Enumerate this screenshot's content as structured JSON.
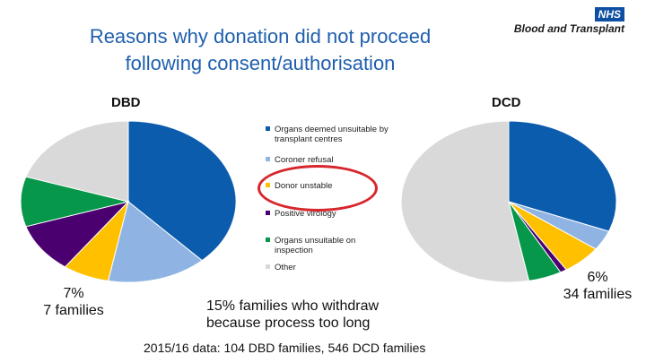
{
  "title": {
    "line1": "Reasons why donation did not proceed",
    "line2": "following consent/authorisation"
  },
  "logo": {
    "badge": "NHS",
    "org": "Blood and Transplant"
  },
  "legend": [
    {
      "label": "Organs deemed unsuitable by transplant centres",
      "color": "#0b5cad"
    },
    {
      "label": "Coroner refusal",
      "color": "#8fb4e3"
    },
    {
      "label": "Donor unstable",
      "color": "#ffc000"
    },
    {
      "label": "Positive virology",
      "color": "#4b0070"
    },
    {
      "label": "Organs unsuitable on inspection",
      "color": "#07974a"
    },
    {
      "label": "Other",
      "color": "#d9d9d9"
    }
  ],
  "chart_data": [
    {
      "type": "pie",
      "title": "DBD",
      "categories": [
        "Organs deemed unsuitable by transplant centres",
        "Coroner refusal",
        "Donor unstable",
        "Positive virology",
        "Organs unsuitable on inspection",
        "Other"
      ],
      "values": [
        38,
        15,
        7,
        10,
        10,
        20
      ],
      "colors": [
        "#0b5cad",
        "#8fb4e3",
        "#ffc000",
        "#4b0070",
        "#07974a",
        "#d9d9d9"
      ]
    },
    {
      "type": "pie",
      "title": "DCD",
      "categories": [
        "Organs deemed unsuitable by transplant centres",
        "Coroner refusal",
        "Donor unstable",
        "Positive virology",
        "Organs unsuitable on inspection",
        "Other"
      ],
      "values": [
        31,
        4,
        6,
        1,
        5,
        53
      ],
      "colors": [
        "#0b5cad",
        "#8fb4e3",
        "#ffc000",
        "#4b0070",
        "#07974a",
        "#d9d9d9"
      ]
    }
  ],
  "annotations": {
    "dbd_pct": "7%",
    "dbd_families": "7 families",
    "dcd_pct": "6%",
    "dcd_families": "34 families",
    "withdraw_line1": "15% families who withdraw",
    "withdraw_line2": "because process too long"
  },
  "footer": "2015/16 data: 104 DBD families, 546 DCD families"
}
